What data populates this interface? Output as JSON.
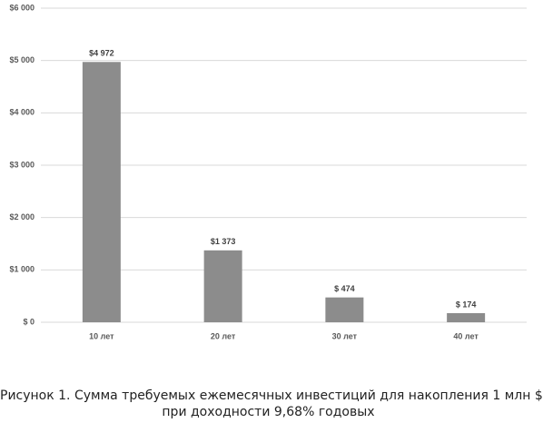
{
  "chart_data": {
    "type": "bar",
    "title": [
      "Рисунок 1. Сумма требуемых ежемесячных инвестиций для накопления 1 млн $",
      "при доходности 9,68% годовых"
    ],
    "categories": [
      "10 лет",
      "20 лет",
      "30 лет",
      "40 лет"
    ],
    "values": [
      4972,
      1373,
      474,
      174
    ],
    "value_labels": [
      "$4 972",
      "$1 373",
      "$ 474",
      "$ 174"
    ],
    "color": "#8c8c8c",
    "ylim": [
      0,
      6000
    ],
    "yticks": [
      {
        "value": 0,
        "label": "$ 0"
      },
      {
        "value": 1000,
        "label": "$1 000"
      },
      {
        "value": 2000,
        "label": "$2 000"
      },
      {
        "value": 3000,
        "label": "$3 000"
      },
      {
        "value": 4000,
        "label": "$4 000"
      },
      {
        "value": 5000,
        "label": "$5 000"
      },
      {
        "value": 6000,
        "label": "$6 000"
      }
    ],
    "grid": true
  }
}
